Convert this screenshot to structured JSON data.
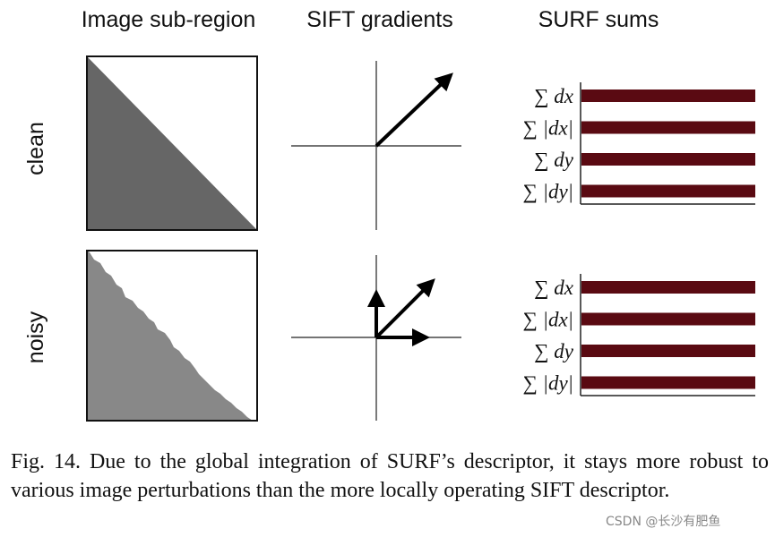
{
  "columns": [
    "Image sub-region",
    "SIFT gradients",
    "SURF sums"
  ],
  "rows": [
    {
      "label": "clean",
      "sums": [
        "∑ dx",
        "∑ |dx|",
        "∑ dy",
        "∑ |dy|"
      ]
    },
    {
      "label": "noisy",
      "sums": [
        "∑ dx",
        "∑ |dx|",
        "∑ dy",
        "∑ |dy|"
      ]
    }
  ],
  "caption": "Fig. 14.  Due to the global integration of SURF’s descriptor, it stays more robust to various image perturbations than the more locally operating SIFT descriptor.",
  "watermark": "CSDN @长沙有肥鱼"
}
